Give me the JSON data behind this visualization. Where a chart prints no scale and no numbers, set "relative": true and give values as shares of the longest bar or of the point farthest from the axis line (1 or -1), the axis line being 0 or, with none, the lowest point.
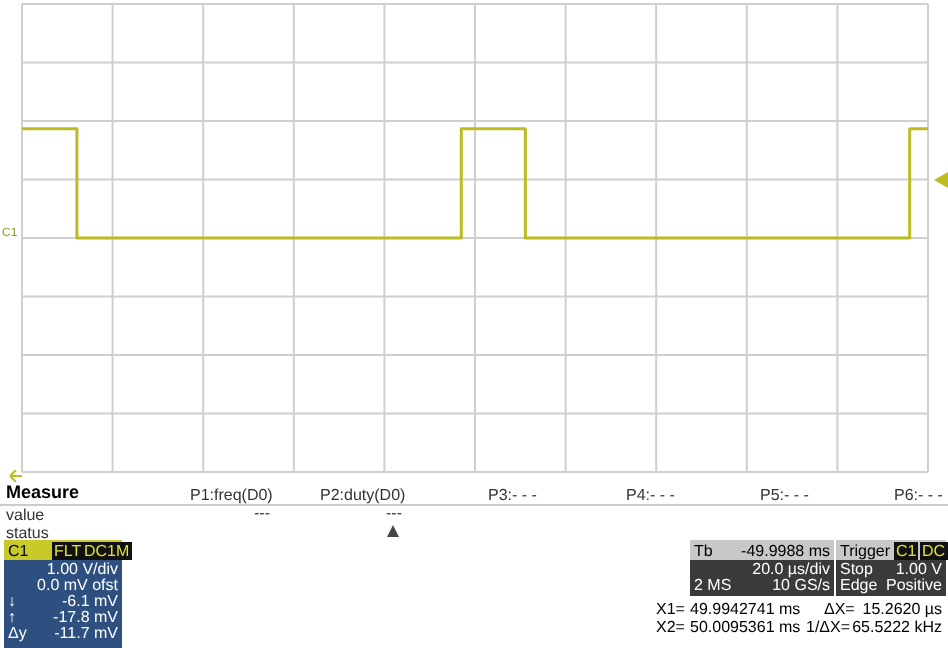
{
  "chart_data": {
    "type": "step",
    "relative": true,
    "grid": true,
    "marker": "none",
    "categories": [
      null,
      null,
      null,
      null,
      null,
      null,
      null,
      null,
      null,
      null,
      null,
      null,
      null,
      null,
      null,
      null,
      null,
      null,
      null,
      null,
      null,
      null,
      null,
      null,
      null,
      null,
      null,
      null,
      null,
      null,
      null,
      null,
      null,
      null,
      null,
      null,
      null,
      null,
      null,
      null,
      null,
      null,
      null,
      null,
      null,
      null,
      null,
      null,
      null,
      null,
      null,
      null,
      null,
      null,
      null,
      null,
      null,
      null,
      null,
      null,
      null,
      null,
      null,
      null,
      null,
      null,
      null,
      null,
      null,
      null,
      null,
      null,
      null,
      null,
      null,
      null,
      null,
      null,
      null,
      null,
      null,
      null,
      null,
      null,
      null,
      null,
      null,
      null,
      null,
      null,
      null,
      null,
      null,
      null,
      null,
      null,
      null,
      null,
      null,
      null
    ],
    "series": [
      {
        "color": "#bcbc22",
        "values": [
          1,
          1,
          1,
          1,
          1,
          1,
          0,
          0,
          0,
          0,
          0,
          0,
          0,
          0,
          0,
          0,
          0,
          0,
          0,
          0,
          0,
          0,
          0,
          0,
          0,
          0,
          0,
          0,
          0,
          0,
          0,
          0,
          0,
          0,
          0,
          0,
          0,
          0,
          0,
          0,
          0,
          0,
          0,
          0,
          0,
          0,
          0,
          0,
          1,
          1,
          1,
          1,
          1,
          1,
          1,
          0,
          0,
          0,
          0,
          0,
          0,
          0,
          0,
          0,
          0,
          0,
          0,
          0,
          0,
          0,
          0,
          0,
          0,
          0,
          0,
          0,
          0,
          0,
          0,
          0,
          0,
          0,
          0,
          0,
          0,
          0,
          0,
          0,
          0,
          0,
          0,
          0,
          0,
          0,
          0,
          0,
          0,
          1,
          1,
          1
        ]
      }
    ],
    "annotations": [
      "C1",
      "Measure",
      "P1:freq(D0)",
      "P2:duty(D0)",
      "P3:- - -",
      "P4:- - -",
      "P5:- - -",
      "P6:- - -",
      "value",
      "---",
      "---",
      "status",
      "C1",
      "FLT",
      "DC1M",
      "1.00 V/div",
      "0.0 mV ofst",
      "↓",
      "-6.1 mV",
      "↑",
      "-17.8 mV",
      "Δy",
      "-11.7 mV",
      "Tb",
      "-49.9988 ms",
      "20.0 µs/div",
      "2 MS",
      "10 GS/s",
      "Trigger",
      "C1",
      "DC",
      "Stop",
      "1.00 V",
      "Edge",
      "Positive",
      "X1=",
      "49.9942741 ms",
      "ΔX=",
      "15.2620 µs",
      "X2=",
      "50.0095361 ms",
      "1/ΔX=",
      "65.5222 kHz"
    ]
  }
}
